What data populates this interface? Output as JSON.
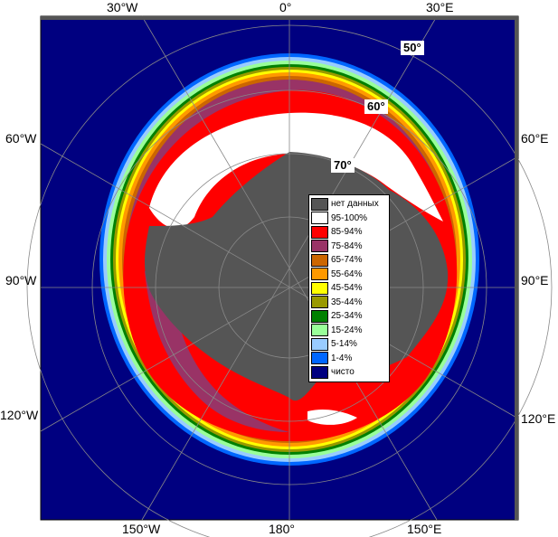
{
  "map": {
    "lon_labels": {
      "top_30w": "30°W",
      "top_0": "0°",
      "top_30e": "30°E",
      "left_60w": "60°W",
      "left_90w": "90°W",
      "left_120w": "120°W",
      "right_60e": "60°E",
      "right_90e": "90°E",
      "right_120e": "120°E",
      "bottom_150w": "150°W",
      "bottom_180": "180°",
      "bottom_150e": "150°E"
    },
    "lat_labels": {
      "lat50": "50°",
      "lat60": "60°",
      "lat70": "70°"
    },
    "colors": {
      "ocean": "#000080",
      "land": "#555555",
      "c95_100": "#ffffff",
      "c85_94": "#ff0000",
      "c75_84": "#993366",
      "c65_74": "#cc6600",
      "c55_64": "#ff9900",
      "c45_54": "#ffff00",
      "c35_44": "#999900",
      "c25_34": "#008000",
      "c15_24": "#99ff99",
      "c5_14": "#99ccff",
      "c1_4": "#0066ff"
    }
  },
  "legend": {
    "items": [
      {
        "label": "нет данных",
        "color": "#555555"
      },
      {
        "label": "95-100%",
        "color": "#ffffff"
      },
      {
        "label": "85-94%",
        "color": "#ff0000"
      },
      {
        "label": "75-84%",
        "color": "#993366"
      },
      {
        "label": "65-74%",
        "color": "#cc6600"
      },
      {
        "label": "55-64%",
        "color": "#ff9900"
      },
      {
        "label": "45-54%",
        "color": "#ffff00"
      },
      {
        "label": "35-44%",
        "color": "#999900"
      },
      {
        "label": "25-34%",
        "color": "#008000"
      },
      {
        "label": "15-24%",
        "color": "#99ff99"
      },
      {
        "label": "5-14%",
        "color": "#99ccff"
      },
      {
        "label": "1-4%",
        "color": "#0066ff"
      },
      {
        "label": "чисто",
        "color": "#000080"
      }
    ]
  }
}
